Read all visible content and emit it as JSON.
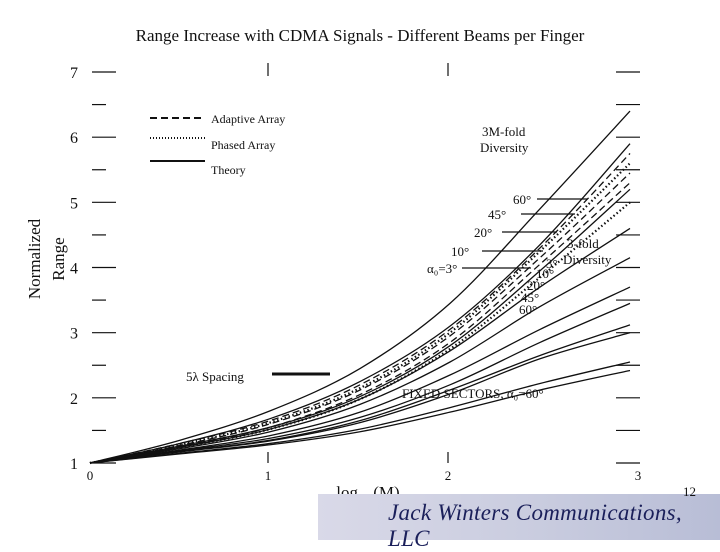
{
  "slide_number": "12",
  "footer_logo_text": "Jack Winters Communications, LLC",
  "chart_data": {
    "type": "line",
    "title": "Range Increase with CDMA Signals - Different Beams per Finger",
    "xlabel": "log10 (M)",
    "ylabel": "Normalized Range",
    "xlim": [
      0,
      3
    ],
    "ylim": [
      1,
      7
    ],
    "x_ticks": [
      "0",
      "1",
      "2",
      "3"
    ],
    "y_ticks": [
      "1",
      "2",
      "3",
      "4",
      "5",
      "6",
      "7"
    ],
    "legend_location": "top-left",
    "legend": [
      {
        "label": "Adaptive Array",
        "style": "dashed"
      },
      {
        "label": "Phased Array",
        "style": "dotted"
      },
      {
        "label": "Theory",
        "style": "solid"
      }
    ],
    "annotations": {
      "diversity_3m": [
        "3M-fold",
        "Diversity"
      ],
      "diversity_3": [
        "3-fold",
        "Diversity"
      ],
      "upper_beams": [
        "60°",
        "45°",
        "20°",
        "10°"
      ],
      "alpha": "α₀=3°",
      "lower_beams": [
        "3°",
        "10°",
        "20°",
        "45°",
        "60°"
      ],
      "spacing": "5λ Spacing",
      "fixed_sectors": "FIXED SECTORS, α₀=60°"
    },
    "series": [
      {
        "style": "solid",
        "x": [
          0,
          0.5,
          1,
          1.5,
          2,
          2.5,
          3
        ],
        "y": [
          1,
          1.35,
          1.8,
          2.45,
          3.45,
          4.9,
          6.4
        ]
      },
      {
        "style": "solid",
        "x": [
          0,
          0.5,
          1,
          1.5,
          2,
          2.5,
          3
        ],
        "y": [
          1,
          1.3,
          1.68,
          2.25,
          3.1,
          4.35,
          5.9
        ]
      },
      {
        "style": "dashed",
        "x": [
          0,
          0.5,
          1,
          1.5,
          2,
          2.5,
          3
        ],
        "y": [
          1,
          1.3,
          1.65,
          2.2,
          3.05,
          4.3,
          5.75
        ]
      },
      {
        "style": "dotted",
        "x": [
          0,
          0.5,
          1,
          1.5,
          2,
          2.5,
          3
        ],
        "y": [
          1,
          1.28,
          1.62,
          2.15,
          3.0,
          4.25,
          5.6
        ]
      },
      {
        "style": "dashed",
        "x": [
          0,
          0.5,
          1,
          1.5,
          2,
          2.5,
          3
        ],
        "y": [
          1,
          1.27,
          1.6,
          2.12,
          2.95,
          4.15,
          5.45
        ]
      },
      {
        "style": "solid",
        "x": [
          0,
          0.5,
          1,
          1.5,
          2,
          2.5,
          3
        ],
        "y": [
          1,
          1.26,
          1.55,
          2.02,
          2.8,
          3.95,
          5.2
        ]
      },
      {
        "style": "dashed",
        "x": [
          0,
          0.5,
          1,
          1.5,
          2,
          2.5,
          3
        ],
        "y": [
          1,
          1.25,
          1.55,
          2.05,
          2.85,
          4.05,
          5.3
        ]
      },
      {
        "style": "dotted",
        "x": [
          0,
          0.5,
          1,
          1.5,
          2,
          2.5,
          3
        ],
        "y": [
          1,
          1.24,
          1.52,
          1.98,
          2.75,
          3.85,
          5.0
        ]
      },
      {
        "style": "solid",
        "x": [
          0,
          0.5,
          1,
          1.5,
          2,
          2.5,
          3
        ],
        "y": [
          1,
          1.24,
          1.52,
          1.98,
          2.72,
          3.7,
          4.6
        ]
      },
      {
        "style": "solid",
        "x": [
          0,
          0.5,
          1,
          1.5,
          2,
          2.5,
          3
        ],
        "y": [
          1,
          1.22,
          1.48,
          1.9,
          2.55,
          3.4,
          4.15
        ]
      },
      {
        "style": "solid",
        "x": [
          0,
          0.5,
          1,
          1.5,
          2,
          2.5,
          3
        ],
        "y": [
          1,
          1.2,
          1.42,
          1.78,
          2.35,
          3.05,
          3.7
        ]
      },
      {
        "style": "solid",
        "x": [
          0,
          0.5,
          1,
          1.5,
          2,
          2.5,
          3
        ],
        "y": [
          1,
          1.19,
          1.38,
          1.7,
          2.2,
          2.85,
          3.45
        ]
      },
      {
        "style": "solid",
        "x": [
          0,
          0.5,
          1,
          1.5,
          2,
          2.5,
          3
        ],
        "y": [
          1,
          1.18,
          1.35,
          1.65,
          2.12,
          2.65,
          3.12
        ]
      },
      {
        "style": "solid",
        "x": [
          0,
          0.5,
          1,
          1.5,
          2,
          2.5,
          3
        ],
        "y": [
          1,
          1.17,
          1.34,
          1.62,
          2.06,
          2.6,
          3.0
        ]
      },
      {
        "style": "solid",
        "x": [
          0,
          0.5,
          1,
          1.5,
          2,
          2.5,
          3
        ],
        "y": [
          1,
          1.15,
          1.3,
          1.52,
          1.85,
          2.22,
          2.55
        ]
      },
      {
        "style": "solid",
        "x": [
          0,
          0.5,
          1,
          1.5,
          2,
          2.5,
          3
        ],
        "y": [
          1,
          1.14,
          1.28,
          1.48,
          1.78,
          2.12,
          2.42
        ]
      }
    ]
  }
}
